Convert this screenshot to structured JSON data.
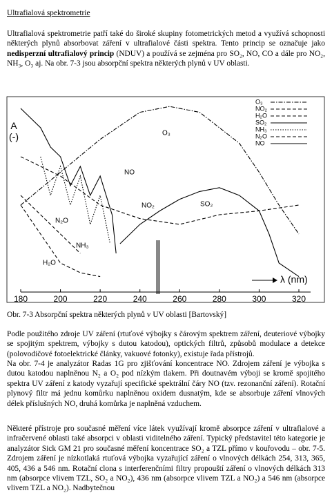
{
  "title": "Ultrafialová spektrometrie",
  "paragraph1": {
    "before": "Ultrafialová spektrometrie patří také do široké skupiny fotometrických metod a využívá schopnosti některých plynů absorbovat záření v ultrafialové části spektra. Tento princip se označuje jako ",
    "bold": "nedisperzní ultrafialový princip",
    "after": " (NDUV) a používá se zejména pro SO₂, NO, CO a dále pro NO₂, NH₃, O₃ aj. Na obr. 7-3 jsou absorpční spektra některých plynů v UV oblasti."
  },
  "chart_data": {
    "type": "line",
    "y_label": "A\n(-)",
    "x_label": "λ (nm)",
    "xlim": [
      180,
      320
    ],
    "ylim": [
      0,
      100
    ],
    "xticks": [
      180,
      200,
      220,
      240,
      260,
      280,
      300,
      320
    ],
    "legend": "top-right",
    "series": [
      {
        "name": "O₃",
        "color": "#000",
        "style": "dashdot",
        "x": [
          180,
          200,
          220,
          240,
          255,
          270,
          290,
          300,
          310,
          320
        ],
        "values": [
          45,
          62,
          79,
          93,
          96,
          93,
          77,
          62,
          45,
          30
        ]
      },
      {
        "name": "NO₂",
        "color": "#000",
        "style": "dashed",
        "x": [
          180,
          200,
          220,
          240,
          260,
          280,
          300,
          320
        ],
        "values": [
          70,
          60,
          45,
          38,
          35,
          40,
          42,
          45
        ]
      },
      {
        "name": "H₂O",
        "color": "#000",
        "style": "dashed",
        "x": [
          180,
          190,
          200,
          210,
          220
        ],
        "values": [
          45,
          30,
          15,
          10,
          8
        ]
      },
      {
        "name": "SO₂",
        "color": "#000",
        "style": "solid",
        "x": [
          230,
          240,
          250,
          260,
          270,
          280,
          290,
          300,
          305,
          310,
          320
        ],
        "values": [
          25,
          35,
          42,
          48,
          52,
          54,
          50,
          42,
          30,
          15,
          8
        ]
      },
      {
        "name": "NH₃",
        "color": "#000",
        "style": "dotted",
        "x": [
          190,
          195,
          200,
          205,
          210,
          215,
          220,
          225
        ],
        "values": [
          70,
          50,
          65,
          45,
          60,
          35,
          50,
          25
        ]
      },
      {
        "name": "N₂O",
        "color": "#000",
        "style": "dashed",
        "x": [
          180,
          190,
          200,
          210
        ],
        "values": [
          50,
          40,
          30,
          20
        ]
      },
      {
        "name": "NO",
        "color": "#000",
        "style": "solid",
        "x": [
          180,
          190,
          195,
          200,
          205,
          210,
          215,
          220,
          226,
          228
        ],
        "values": [
          95,
          85,
          75,
          70,
          55,
          65,
          50,
          60,
          40,
          20
        ]
      }
    ]
  },
  "caption": "Obr. 7-3  Absorpční spektra některých plynů v UV oblasti [Bartovský]",
  "paragraph2": "Podle použitého zdroje UV záření (rtuťové výbojky s čárovým spektrem záření, deuteriové výbojky se spojitým spektrem, výbojky s dutou katodou), optických filtrů, způsobů modulace a detekce (polovodičové fotoelektrické články, vakuové fotonky), existuje řada přístrojů.",
  "paragraph3": "Na obr. 7-4 je analyzátor Radas 1G pro zjišťování koncentrace NO. Zdrojem záření je výbojka s dutou katodou naplněnou N₂ a O₂ pod nízkým tlakem. Při doutnavém výboji se kromě spojitého spektra UV záření z katody vyzařují specifické spektrální čáry NO (tzv. rezonanční záření). Rotační plynový filtr má jednu komůrku naplněnou oxidem dusnatým, kde se absorbuje záření vlnových délek příslušných NO, druhá komůrka je naplněná vzduchem.",
  "paragraph4": "Některé přístroje pro současné měření více látek využívají kromě absorpce záření v ultrafialové a infračervené oblasti také absorpci v oblasti viditelného záření. Typický představitel této kategorie je analyzátor Sick GM 21 pro současné měření koncentrace SO₂ a TZL přímo v kouřovodu – obr. 7-5. Zdrojem záření je nízkotlaká rtuťová výbojka vyzařující záření o vlnových délkách 254, 313, 365, 405, 436 a 546 nm. Rotační clona s interferenčními filtry propouští záření o vlnových délkách 313 nm (absorpce vlivem TZL, SO₂ a NO₂), 436 nm (absorpce vlivem TZL a NO₂) a 546 nm (absorpce vlivem TZL a NO₂). Nadbytečnou"
}
